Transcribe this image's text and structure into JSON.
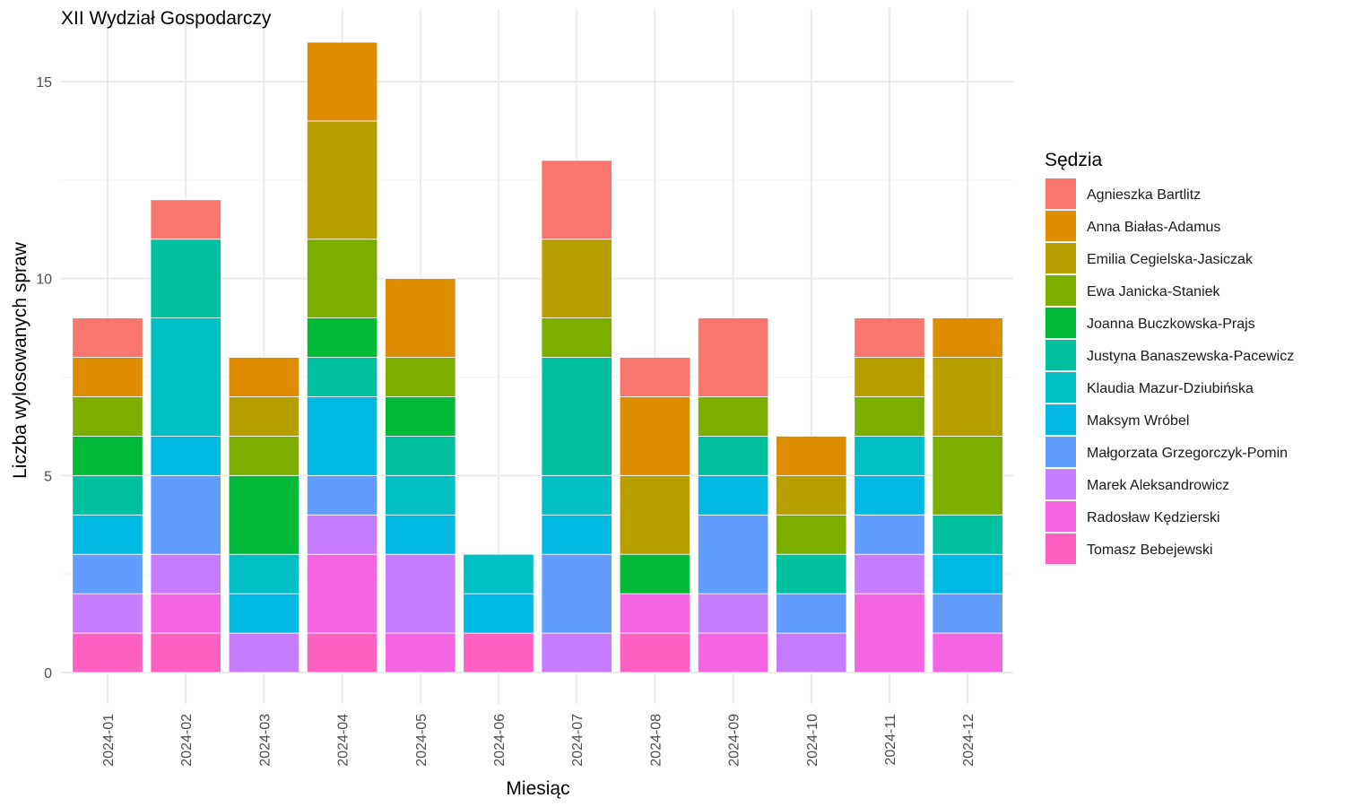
{
  "chart_data": {
    "type": "bar",
    "stacked": true,
    "title": "XII Wydział Gospodarczy",
    "xlabel": "Miesiąc",
    "ylabel": "Liczba wylosowanych spraw",
    "ylim": [
      0,
      16
    ],
    "yticks": [
      0,
      5,
      10,
      15
    ],
    "grid": true,
    "legend_title": "Sędzia",
    "legend_position": "right",
    "categories": [
      "2024-01",
      "2024-02",
      "2024-03",
      "2024-04",
      "2024-05",
      "2024-06",
      "2024-07",
      "2024-08",
      "2024-09",
      "2024-10",
      "2024-11",
      "2024-12"
    ],
    "series": [
      {
        "name": "Tomasz Bebejewski",
        "color": "#FF61C3",
        "values": [
          1,
          1,
          0,
          1,
          0,
          1,
          0,
          1,
          0,
          0,
          0,
          0
        ]
      },
      {
        "name": "Radosław Kędzierski",
        "color": "#F564E3",
        "values": [
          0,
          1,
          0,
          2,
          1,
          0,
          0,
          1,
          1,
          0,
          2,
          1
        ]
      },
      {
        "name": "Marek Aleksandrowicz",
        "color": "#C77CFF",
        "values": [
          1,
          1,
          1,
          1,
          2,
          0,
          1,
          0,
          1,
          1,
          1,
          0
        ]
      },
      {
        "name": "Małgorzata Grzegorczyk-Pomin",
        "color": "#619CFF",
        "values": [
          1,
          2,
          0,
          1,
          0,
          0,
          2,
          0,
          2,
          1,
          1,
          1
        ]
      },
      {
        "name": "Maksym Wróbel",
        "color": "#00B9E3",
        "values": [
          1,
          1,
          1,
          2,
          1,
          1,
          1,
          0,
          1,
          0,
          1,
          1
        ]
      },
      {
        "name": "Klaudia Mazur-Dziubińska",
        "color": "#00BFC4",
        "values": [
          0,
          3,
          1,
          0,
          1,
          1,
          1,
          0,
          0,
          0,
          1,
          0
        ]
      },
      {
        "name": "Justyna Banaszewska-Pacewicz",
        "color": "#00C19F",
        "values": [
          1,
          2,
          0,
          1,
          1,
          0,
          3,
          0,
          1,
          1,
          0,
          1
        ]
      },
      {
        "name": "Joanna Buczkowska-Prajs",
        "color": "#00BA38",
        "values": [
          1,
          0,
          2,
          1,
          1,
          0,
          0,
          1,
          0,
          0,
          0,
          0
        ]
      },
      {
        "name": "Ewa Janicka-Staniek",
        "color": "#7CAE00",
        "values": [
          1,
          0,
          1,
          2,
          1,
          0,
          1,
          0,
          1,
          1,
          1,
          2
        ]
      },
      {
        "name": "Emilia Cegielska-Jasiczak",
        "color": "#B79F00",
        "values": [
          0,
          0,
          1,
          3,
          0,
          0,
          2,
          2,
          0,
          1,
          1,
          2
        ]
      },
      {
        "name": "Anna Białas-Adamus",
        "color": "#DE8C00",
        "values": [
          1,
          0,
          1,
          2,
          2,
          0,
          0,
          2,
          0,
          1,
          0,
          1
        ]
      },
      {
        "name": "Agnieszka Bartlitz",
        "color": "#F8766D",
        "values": [
          1,
          1,
          0,
          0,
          0,
          0,
          2,
          1,
          2,
          0,
          1,
          0
        ]
      }
    ]
  }
}
